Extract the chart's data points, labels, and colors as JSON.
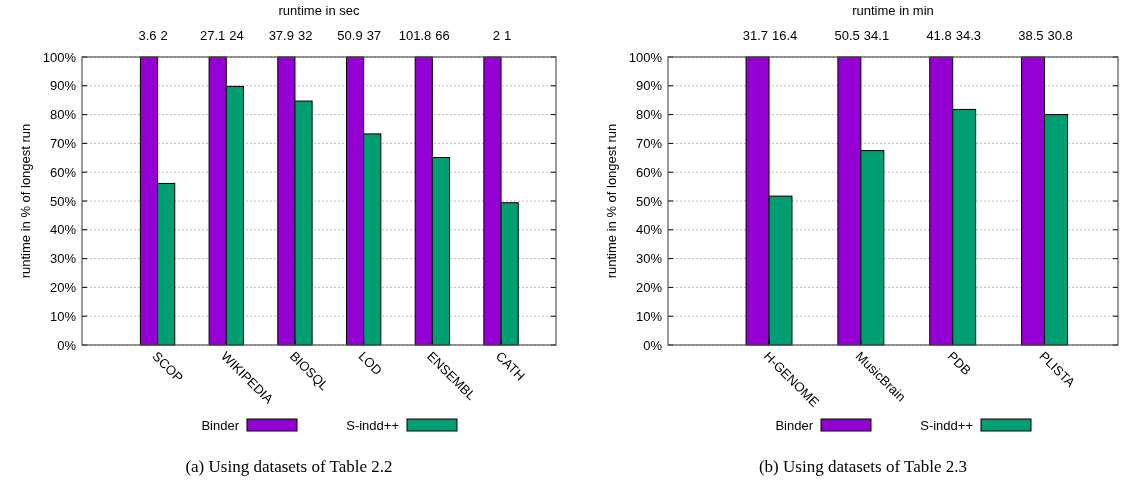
{
  "chart_data": [
    {
      "type": "bar",
      "x2label": "runtime in sec",
      "ylabel": "runtime in % of longest run",
      "categories": [
        "SCOP",
        "WIKIPEDIA",
        "BIOSQL",
        "LOD",
        "ENSEMBL",
        "CATH"
      ],
      "series": [
        {
          "name": "Binder",
          "color": "#9400d3",
          "values": [
            100,
            100,
            100,
            100,
            100,
            100
          ]
        },
        {
          "name": "S-indd++",
          "color": "#009e73",
          "values": [
            56.1,
            89.8,
            84.7,
            73.3,
            65.1,
            49.4
          ]
        }
      ],
      "ylim": [
        0,
        100
      ],
      "yticks": [
        {
          "value": 0,
          "label": "0%"
        },
        {
          "value": 10,
          "label": "10%"
        },
        {
          "value": 20,
          "label": "20%"
        },
        {
          "value": 30,
          "label": "30%"
        },
        {
          "value": 40,
          "label": "40%"
        },
        {
          "value": 50,
          "label": "50%"
        },
        {
          "value": 60,
          "label": "60%"
        },
        {
          "value": 70,
          "label": "70%"
        },
        {
          "value": 80,
          "label": "80%"
        },
        {
          "value": 90,
          "label": "90%"
        },
        {
          "value": 100,
          "label": "100%"
        }
      ],
      "grid": "y",
      "legend": "bottom",
      "annotations": [
        "3.6",
        "2",
        "27.1",
        "24",
        "37.9",
        "32",
        "50.9",
        "37",
        "101.8",
        "66",
        "2",
        "1",
        "(a) Using datasets of Table 2.2"
      ]
    },
    {
      "type": "bar",
      "x2label": "runtime in min",
      "ylabel": "runtime in % of longest run",
      "categories": [
        "H-GENOME",
        "MusicBrain",
        "PDB",
        "PLISTA"
      ],
      "series": [
        {
          "name": "Binder",
          "color": "#9400d3",
          "values": [
            100,
            100,
            100,
            100
          ]
        },
        {
          "name": "S-indd++",
          "color": "#009e73",
          "values": [
            51.7,
            67.5,
            81.8,
            80.0
          ]
        }
      ],
      "ylim": [
        0,
        100
      ],
      "yticks": [
        {
          "value": 0,
          "label": "0%"
        },
        {
          "value": 10,
          "label": "10%"
        },
        {
          "value": 20,
          "label": "20%"
        },
        {
          "value": 30,
          "label": "30%"
        },
        {
          "value": 40,
          "label": "40%"
        },
        {
          "value": 50,
          "label": "50%"
        },
        {
          "value": 60,
          "label": "60%"
        },
        {
          "value": 70,
          "label": "70%"
        },
        {
          "value": 80,
          "label": "80%"
        },
        {
          "value": 90,
          "label": "90%"
        },
        {
          "value": 100,
          "label": "100%"
        }
      ],
      "grid": "y",
      "legend": "bottom",
      "annotations": [
        "31.7",
        "16.4",
        "50.5",
        "34.1",
        "41.8",
        "34.3",
        "38.5",
        "30.8",
        "(b) Using datasets of Table 2.3"
      ]
    }
  ]
}
